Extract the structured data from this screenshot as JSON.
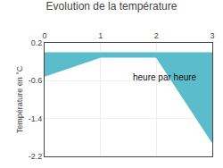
{
  "chart_data": {
    "type": "area",
    "title": "Evolution de la température",
    "ylabel": "Température en °C",
    "x": [
      0,
      1,
      2,
      3
    ],
    "values": [
      -0.5,
      -0.1,
      -0.1,
      -1.9
    ],
    "color": "#5bbccc",
    "xlim": [
      0,
      3
    ],
    "xticks": [
      0,
      1,
      2,
      3
    ],
    "ylim": [
      -2.2,
      0.2
    ],
    "yticks": [
      0.2,
      -0.6,
      -1.4,
      -2.2
    ],
    "grid": true,
    "annotations": [
      {
        "text": "heure par heure",
        "x": 1.55,
        "y": -0.38
      }
    ]
  }
}
